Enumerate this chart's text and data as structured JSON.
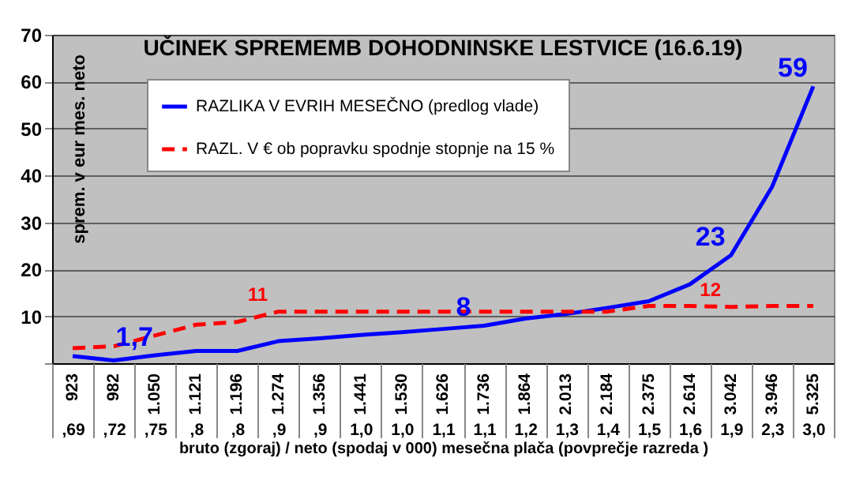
{
  "chart_data": {
    "type": "line",
    "title": "UČINEK SPREMEMB DOHODNINSKE LESTVICE (16.6.19)",
    "xlabel": "bruto (zgoraj) / neto (spodaj  v 000) mesečna plača (povprečje razreda )",
    "ylabel": "sprem. v eur mes. neto",
    "categories": [
      "923\n,69",
      "982\n,72",
      "1.050\n,75",
      "1.121\n,8",
      "1.196\n,8",
      "1.274\n,9",
      "1.356\n,9",
      "1.441\n1,0",
      "1.530\n1,0",
      "1.626\n1,1",
      "1.736\n1,1",
      "1.864\n1,2",
      "2.013\n1,3",
      "2.184\n1,4",
      "2.375\n1,5",
      "2.614\n1,6",
      "3.042\n1,9",
      "3.946\n2,3",
      "5.325\n3,0"
    ],
    "series": [
      {
        "name": "RAZLIKA V EVRIH MESEČNO (predlog vlade)",
        "color": "#0000ff",
        "line_style": "solid",
        "values": [
          1.5,
          0.6,
          1.7,
          2.6,
          2.6,
          4.7,
          5.3,
          6.0,
          6.6,
          7.3,
          8,
          9.5,
          10.5,
          11.8,
          13.2,
          16.8,
          23,
          37.6,
          59
        ],
        "value_labels": [
          null,
          null,
          "1,7",
          null,
          null,
          null,
          null,
          null,
          null,
          null,
          "8",
          null,
          null,
          null,
          null,
          null,
          "23",
          null,
          "59"
        ]
      },
      {
        "name": "RAZL. V € ob popravku spodnje stopnje na 15 %",
        "color": "#ff0000",
        "line_style": "dashed",
        "values": [
          3.2,
          3.6,
          5.9,
          8.2,
          8.8,
          11,
          11,
          11,
          11,
          11,
          11,
          11,
          11,
          11,
          12.2,
          12.2,
          12,
          12.2,
          12.2
        ],
        "value_labels": [
          null,
          null,
          null,
          null,
          null,
          "11",
          null,
          null,
          null,
          null,
          null,
          null,
          null,
          null,
          null,
          null,
          "12",
          null,
          null
        ]
      }
    ],
    "ylim": [
      0,
      70
    ],
    "yticks": [
      {
        "value": 0,
        "label": null
      },
      10,
      20,
      30,
      40,
      50,
      60,
      70
    ],
    "grid": "y",
    "legend": "top left",
    "marker": "none"
  }
}
